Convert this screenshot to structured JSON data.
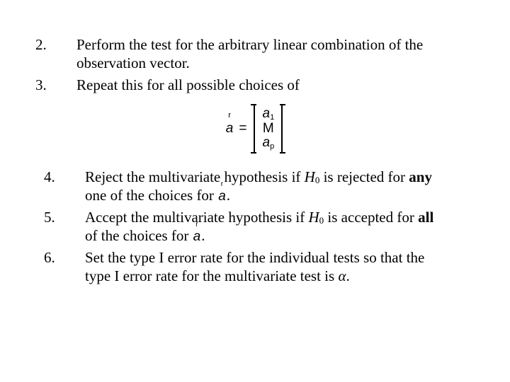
{
  "list1": {
    "i2": {
      "num": "2.",
      "text_a": "Perform the test for the arbitrary linear combination of the",
      "text_b": "observation vector."
    },
    "i3": {
      "num": "3.",
      "text": "Repeat this for all possible choices of"
    }
  },
  "equation": {
    "lhs": "a",
    "eq": "=",
    "entry_top_base": "a",
    "entry_top_sub": "1",
    "entry_mid": "M",
    "entry_bot_base": "a",
    "entry_bot_sub": "p"
  },
  "list2": {
    "i4": {
      "num": "4.",
      "pre": "Reject the multivariate hypothesis if ",
      "H": "H",
      "Hsub": "0",
      "mid": " is rejected for ",
      "any": "any",
      "post1": " one of the choices for ",
      "a": "a",
      "period": "."
    },
    "i5": {
      "num": "5.",
      "pre": "Accept the multivariate hypothesis if ",
      "H": "H",
      "Hsub": "0",
      "mid": " is accepted for ",
      "all": "all",
      "post1": " of the choices for ",
      "a": "a",
      "period": "."
    },
    "i6": {
      "num": "6.",
      "line1": "Set the type I error rate for the individual tests so that the",
      "line2_pre": "type I error rate for the multivariate test is ",
      "alpha": "α",
      "period": "."
    }
  }
}
